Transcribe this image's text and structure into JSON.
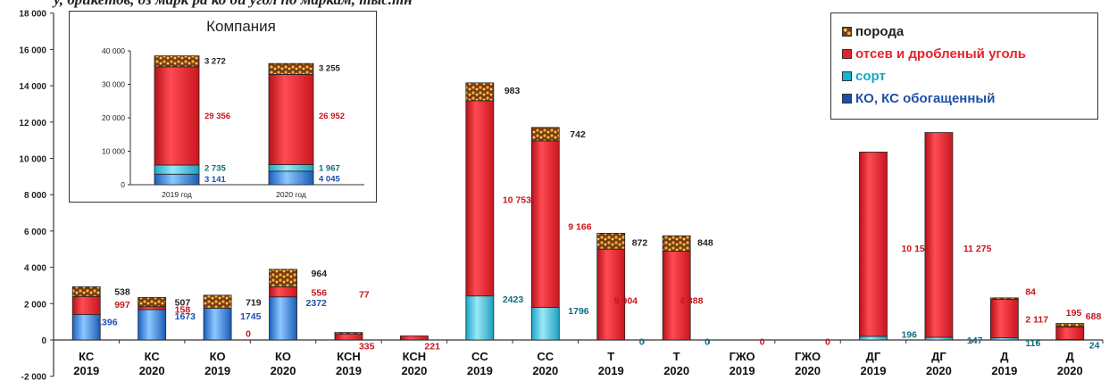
{
  "header_fragment": "у, брикетов, дз  марк ра  ко  ой угол по маркам, тыс.тн",
  "legend": {
    "items": [
      {
        "label": "порода",
        "color": "#e07b1f"
      },
      {
        "label": "отсев и дробленый уголь",
        "color": "#e8212b"
      },
      {
        "label": "сорт",
        "color": "#12b5d4"
      },
      {
        "label": "КО, КС обогащенный",
        "color": "#1f4fa8"
      }
    ]
  },
  "colors": {
    "poroda": "#d9822b",
    "otsev": "#e8212b",
    "sort": "#4fc9e6",
    "ko": "#2a6fd1",
    "text_red": "#c8161d",
    "text_blue": "#1d4fb3",
    "text_teal": "#0f6d80",
    "text_dark": "#222222"
  },
  "chart_data": [
    {
      "type": "bar",
      "stacked": true,
      "categories": [
        [
          "КС",
          "2019"
        ],
        [
          "КС",
          "2020"
        ],
        [
          "КО",
          "2019"
        ],
        [
          "КО",
          "2020"
        ],
        [
          "КСН",
          "2019"
        ],
        [
          "КСН",
          "2020"
        ],
        [
          "СС",
          "2019"
        ],
        [
          "СС",
          "2020"
        ],
        [
          "Т",
          "2019"
        ],
        [
          "Т",
          "2020"
        ],
        [
          "ГЖО",
          "2019"
        ],
        [
          "ГЖО",
          "2020"
        ],
        [
          "ДГ",
          "2019"
        ],
        [
          "ДГ",
          "2020"
        ],
        [
          "Д",
          "2019"
        ],
        [
          "Д",
          "2020"
        ]
      ],
      "series": [
        {
          "name": "КО, КС обогащенный",
          "values": [
            1396,
            1673,
            1745,
            2372,
            0,
            0,
            0,
            0,
            0,
            0,
            0,
            0,
            0,
            0,
            0,
            0
          ]
        },
        {
          "name": "сорт",
          "values": [
            0,
            0,
            0,
            0,
            0,
            0,
            2423,
            1796,
            0,
            0,
            0,
            0,
            196,
            147,
            116,
            24
          ]
        },
        {
          "name": "отсев и дробленый уголь",
          "values": [
            997,
            158,
            0,
            556,
            335,
            221,
            10753,
            9166,
            5004,
            4888,
            0,
            0,
            10151,
            11275,
            2117,
            688
          ]
        },
        {
          "name": "порода",
          "values": [
            538,
            507,
            719,
            964,
            77,
            0,
            983,
            742,
            872,
            848,
            0,
            0,
            0,
            0,
            84,
            195
          ]
        }
      ],
      "data_labels": [
        {
          "text": "1396",
          "cat": 0,
          "y": 1000,
          "dx": 10,
          "color": "blue"
        },
        {
          "text": "997",
          "cat": 0,
          "y": 1970,
          "dx": 30,
          "color": "red"
        },
        {
          "text": "538",
          "cat": 0,
          "y": 2680,
          "dx": 30,
          "color": "dark"
        },
        {
          "text": "1673",
          "cat": 1,
          "y": 1330,
          "dx": 24,
          "color": "blue"
        },
        {
          "text": "158",
          "cat": 1,
          "y": 1690,
          "dx": 24,
          "color": "red"
        },
        {
          "text": "507",
          "cat": 1,
          "y": 2090,
          "dx": 24,
          "color": "dark"
        },
        {
          "text": "1745",
          "cat": 2,
          "y": 1330,
          "dx": 24,
          "color": "blue"
        },
        {
          "text": "0",
          "cat": 2,
          "y": 360,
          "dx": 30,
          "color": "red"
        },
        {
          "text": "719",
          "cat": 2,
          "y": 2090,
          "dx": 30,
          "color": "dark"
        },
        {
          "text": "2372",
          "cat": 3,
          "y": 2070,
          "dx": 24,
          "color": "blue"
        },
        {
          "text": "556",
          "cat": 3,
          "y": 2620,
          "dx": 30,
          "color": "red"
        },
        {
          "text": "964",
          "cat": 3,
          "y": 3690,
          "dx": 30,
          "color": "dark"
        },
        {
          "text": "335",
          "cat": 4,
          "y": -310,
          "dx": 10,
          "color": "red"
        },
        {
          "text": "77",
          "cat": 4,
          "y": 2540,
          "dx": 10,
          "color": "red"
        },
        {
          "text": "221",
          "cat": 5,
          "y": -310,
          "dx": 10,
          "color": "red"
        },
        {
          "text": "2423",
          "cat": 6,
          "y": 2260,
          "dx": 24,
          "color": "teal"
        },
        {
          "text": "10 753",
          "cat": 6,
          "y": 7740,
          "dx": 24,
          "color": "red"
        },
        {
          "text": "983",
          "cat": 6,
          "y": 13750,
          "dx": 26,
          "color": "dark"
        },
        {
          "text": "1796",
          "cat": 7,
          "y": 1630,
          "dx": 24,
          "color": "teal"
        },
        {
          "text": "9 166",
          "cat": 7,
          "y": 6260,
          "dx": 24,
          "color": "red"
        },
        {
          "text": "742",
          "cat": 7,
          "y": 11350,
          "dx": 26,
          "color": "dark"
        },
        {
          "text": "0",
          "cat": 8,
          "y": -70,
          "dx": 30,
          "color": "teal"
        },
        {
          "text": "5 004",
          "cat": 8,
          "y": 2180,
          "dx": 2,
          "color": "red"
        },
        {
          "text": "872",
          "cat": 8,
          "y": 5380,
          "dx": 22,
          "color": "dark"
        },
        {
          "text": "0",
          "cat": 9,
          "y": -70,
          "dx": 30,
          "color": "teal"
        },
        {
          "text": "4 888",
          "cat": 9,
          "y": 2180,
          "dx": 2,
          "color": "red"
        },
        {
          "text": "848",
          "cat": 9,
          "y": 5380,
          "dx": 22,
          "color": "dark"
        },
        {
          "text": "0",
          "cat": 10,
          "y": -70,
          "dx": 18,
          "color": "red"
        },
        {
          "text": "0",
          "cat": 11,
          "y": -70,
          "dx": 18,
          "color": "red"
        },
        {
          "text": "196",
          "cat": 12,
          "y": 320,
          "dx": 30,
          "color": "teal"
        },
        {
          "text": "10 151",
          "cat": 12,
          "y": 5050,
          "dx": 30,
          "color": "red"
        },
        {
          "text": "147",
          "cat": 13,
          "y": 10,
          "dx": 30,
          "color": "teal"
        },
        {
          "text": "11 275",
          "cat": 13,
          "y": 5050,
          "dx": 26,
          "color": "red"
        },
        {
          "text": "116",
          "cat": 14,
          "y": -140,
          "dx": 22,
          "color": "teal"
        },
        {
          "text": "2 117",
          "cat": 14,
          "y": 1150,
          "dx": 22,
          "color": "red"
        },
        {
          "text": "84",
          "cat": 14,
          "y": 2680,
          "dx": 22,
          "color": "red"
        },
        {
          "text": "24",
          "cat": 15,
          "y": -260,
          "dx": 20,
          "color": "teal"
        },
        {
          "text": "688",
          "cat": 15,
          "y": 1320,
          "dx": 16,
          "color": "red"
        },
        {
          "text": "195",
          "cat": 15,
          "y": 1520,
          "dx": -6,
          "color": "red"
        }
      ],
      "xlabel": "",
      "ylabel": "",
      "ylim": [
        -2000,
        18000
      ],
      "yticks": [
        "-2 000",
        "0",
        "2 000",
        "4 000",
        "6 000",
        "8 000",
        "10 000",
        "12 000",
        "14 000",
        "16 000",
        "18 000"
      ],
      "grid": false,
      "legend": "top-right"
    },
    {
      "type": "bar",
      "stacked": true,
      "title": "Компания",
      "categories": [
        "2019 год",
        "2020 год"
      ],
      "series": [
        {
          "name": "КО, КС обогащенный",
          "values": [
            3141,
            4045
          ]
        },
        {
          "name": "сорт",
          "values": [
            2735,
            1967
          ]
        },
        {
          "name": "отсев и дробленый уголь",
          "values": [
            29356,
            26952
          ]
        },
        {
          "name": "порода",
          "values": [
            3272,
            3255
          ]
        }
      ],
      "data_labels": [
        {
          "text": "3 141",
          "cat": 0,
          "y": 1570,
          "color": "blue"
        },
        {
          "text": "2 735",
          "cat": 0,
          "y": 5000,
          "color": "teal"
        },
        {
          "text": "29 356",
          "cat": 0,
          "y": 20500,
          "color": "red"
        },
        {
          "text": "3 272",
          "cat": 0,
          "y": 36900,
          "color": "dark"
        },
        {
          "text": "4 045",
          "cat": 1,
          "y": 1700,
          "color": "blue"
        },
        {
          "text": "1 967",
          "cat": 1,
          "y": 5000,
          "color": "teal"
        },
        {
          "text": "26 952",
          "cat": 1,
          "y": 20500,
          "color": "red"
        },
        {
          "text": "3 255",
          "cat": 1,
          "y": 34800,
          "color": "dark"
        }
      ],
      "ylim": [
        0,
        40000
      ],
      "yticks": [
        "0",
        "10 000",
        "20 000",
        "30 000",
        "40 000"
      ],
      "grid": false
    }
  ]
}
